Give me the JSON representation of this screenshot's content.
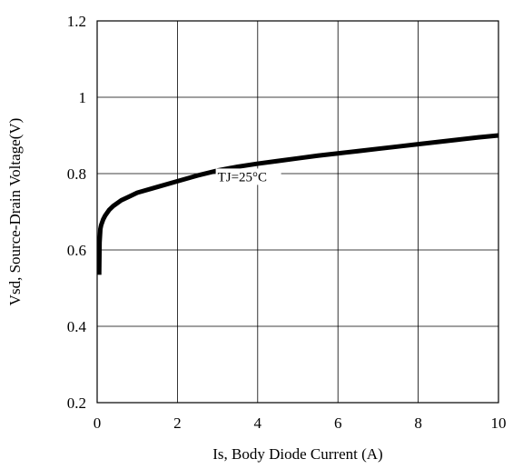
{
  "chart_data": {
    "type": "line",
    "xlabel": "Is, Body Diode Current (A)",
    "ylabel": "Vsd, Source-Drain Voltage(V)",
    "xlim": [
      0,
      10
    ],
    "ylim": [
      0.2,
      1.2
    ],
    "xticks": [
      0,
      2,
      4,
      6,
      8,
      10
    ],
    "yticks": [
      0.2,
      0.4,
      0.6,
      0.8,
      1.0,
      1.2
    ],
    "xtick_labels": [
      "0",
      "2",
      "4",
      "6",
      "8",
      "10"
    ],
    "ytick_labels": [
      "0.2",
      "0.4",
      "0.6",
      "0.8",
      "1",
      "1.2"
    ],
    "grid": true,
    "annotation": "TJ=25°C",
    "series": [
      {
        "x": [
          0.05,
          0.06,
          0.08,
          0.1,
          0.15,
          0.2,
          0.3,
          0.4,
          0.6,
          0.8,
          1.0,
          1.5,
          2.0,
          2.5,
          3.0,
          3.5,
          4.0,
          4.5,
          5.0,
          5.5,
          6.0,
          6.5,
          7.0,
          7.5,
          8.0,
          8.5,
          9.0,
          9.5,
          10.0
        ],
        "y": [
          0.535,
          0.62,
          0.655,
          0.665,
          0.68,
          0.69,
          0.705,
          0.715,
          0.73,
          0.74,
          0.75,
          0.765,
          0.78,
          0.795,
          0.808,
          0.818,
          0.826,
          0.833,
          0.84,
          0.847,
          0.853,
          0.859,
          0.865,
          0.871,
          0.877,
          0.883,
          0.889,
          0.895,
          0.9
        ]
      }
    ]
  }
}
